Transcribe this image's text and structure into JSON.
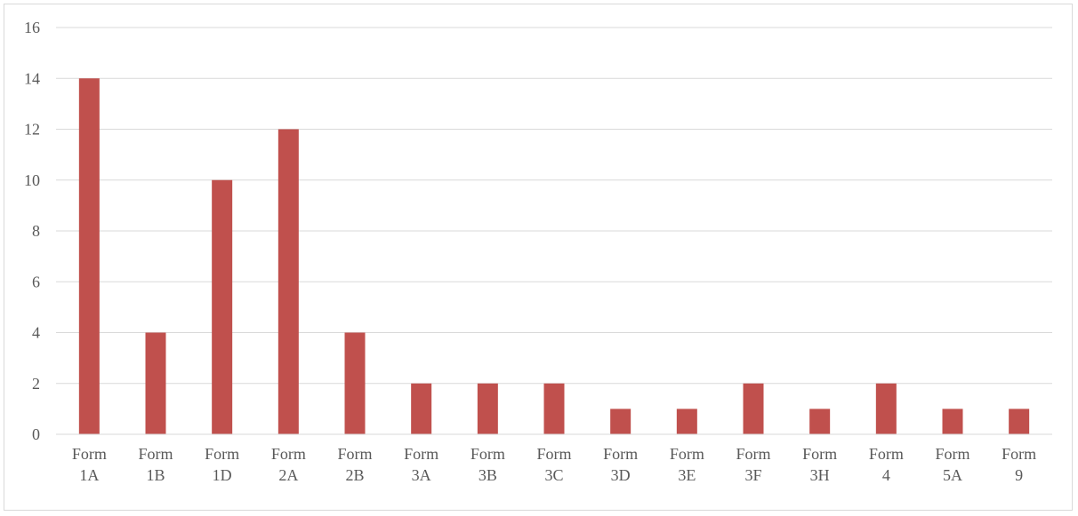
{
  "chart_data": {
    "type": "bar",
    "categories": [
      "Form 1A",
      "Form 1B",
      "Form 1D",
      "Form 2A",
      "Form 2B",
      "Form 3A",
      "Form 3B",
      "Form 3C",
      "Form 3D",
      "Form 3E",
      "Form 3F",
      "Form 3H",
      "Form 4",
      "Form 5A",
      "Form 9"
    ],
    "values": [
      14,
      4,
      10,
      12,
      4,
      2,
      2,
      2,
      1,
      1,
      2,
      1,
      2,
      1,
      1
    ],
    "title": "",
    "xlabel": "",
    "ylabel": "",
    "ylim": [
      0,
      16
    ],
    "yticks": [
      0,
      2,
      4,
      6,
      8,
      10,
      12,
      14,
      16
    ],
    "grid": true,
    "legend": "none",
    "bar_color": "#c0504d",
    "grid_color": "#d9d9d9"
  }
}
